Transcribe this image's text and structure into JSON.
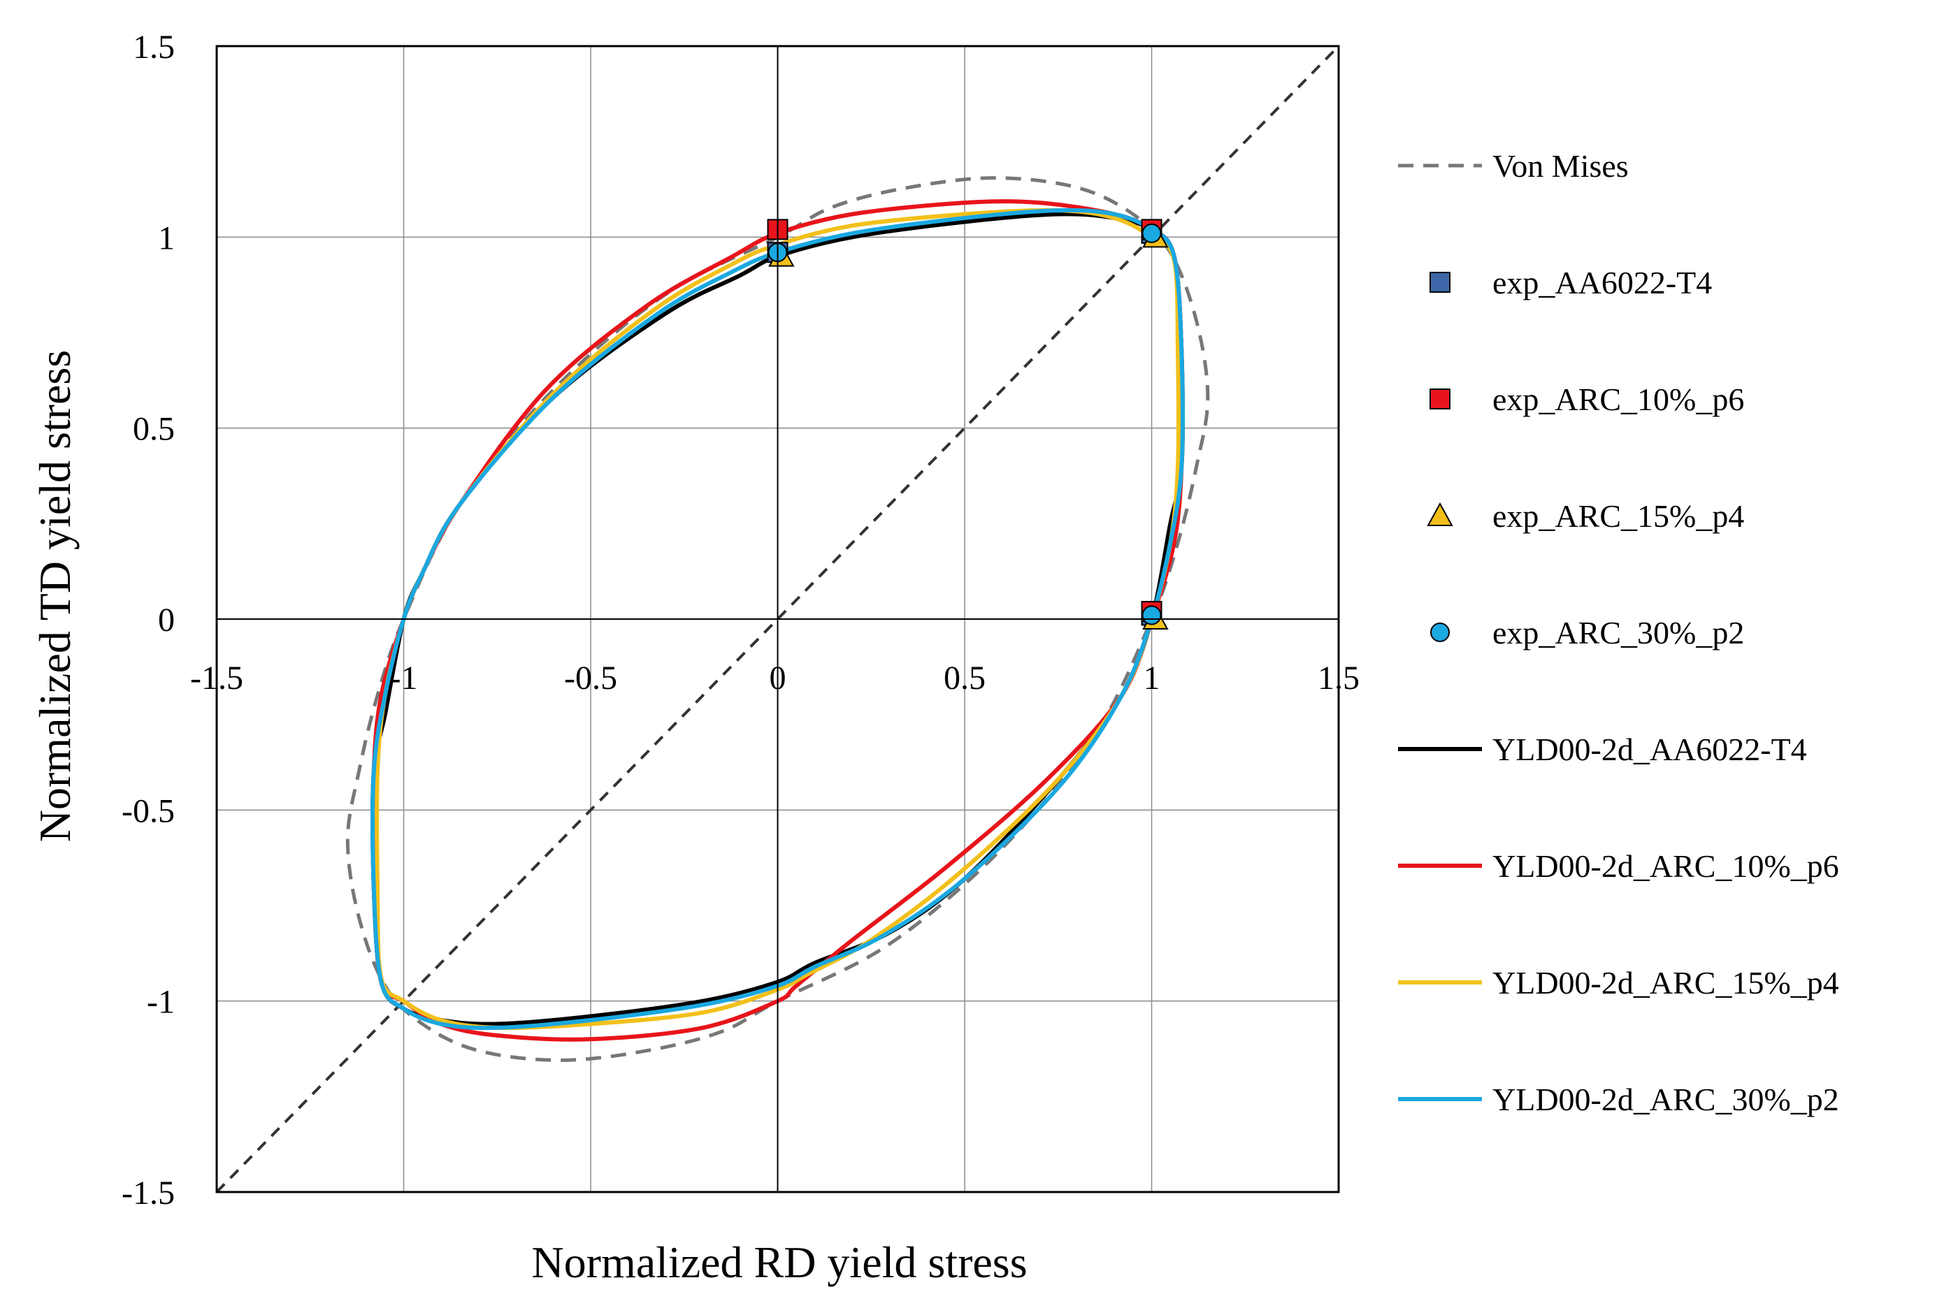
{
  "chart_data": {
    "type": "line",
    "title": "",
    "xlabel": "Normalized RD yield stress",
    "ylabel": "Normalized TD yield stress",
    "xlim": [
      -1.5,
      1.5
    ],
    "ylim": [
      -1.5,
      1.5
    ],
    "x_ticks": [
      "-1.5",
      "-1",
      "-0.5",
      "0",
      "0.5",
      "1",
      "1.5"
    ],
    "y_ticks": [
      "-1.5",
      "-1",
      "-0.5",
      "0",
      "0.5",
      "1",
      "1.5"
    ],
    "grid": true,
    "reference_line": {
      "name": "equibiaxial diagonal",
      "from": [
        -1.5,
        -1.5
      ],
      "to": [
        1.5,
        1.5
      ],
      "style": "dashed",
      "color": "#333333"
    },
    "legend_position": "right",
    "series": [
      {
        "name": "Von Mises",
        "kind": "line",
        "style": "dashed",
        "color": "#777777",
        "points": [
          [
            1,
            0
          ],
          [
            1.07,
            0.2
          ],
          [
            1.12,
            0.4
          ],
          [
            1.15,
            0.58
          ],
          [
            1.12,
            0.78
          ],
          [
            1.05,
            0.96
          ],
          [
            0.95,
            1.06
          ],
          [
            0.8,
            1.13
          ],
          [
            0.58,
            1.155
          ],
          [
            0.35,
            1.13
          ],
          [
            0.15,
            1.08
          ],
          [
            0,
            1
          ],
          [
            -0.3,
            0.85
          ],
          [
            -0.6,
            0.6
          ],
          [
            -0.85,
            0.3
          ],
          [
            -1,
            0
          ],
          [
            -1.07,
            -0.2
          ],
          [
            -1.12,
            -0.4
          ],
          [
            -1.15,
            -0.58
          ],
          [
            -1.12,
            -0.78
          ],
          [
            -1.05,
            -0.96
          ],
          [
            -0.95,
            -1.06
          ],
          [
            -0.8,
            -1.13
          ],
          [
            -0.58,
            -1.155
          ],
          [
            -0.35,
            -1.13
          ],
          [
            -0.15,
            -1.08
          ],
          [
            0,
            -1
          ],
          [
            0.3,
            -0.85
          ],
          [
            0.6,
            -0.6
          ],
          [
            0.85,
            -0.3
          ],
          [
            1,
            0
          ]
        ]
      },
      {
        "name": "exp_AA6022-T4",
        "kind": "marker",
        "marker": "square",
        "color": "#3E66A8",
        "points": [
          [
            0,
            0.96
          ],
          [
            1,
            1.01
          ],
          [
            1,
            0.01
          ]
        ]
      },
      {
        "name": "exp_ARC_10%_p6",
        "kind": "marker",
        "marker": "square",
        "color": "#E8141B",
        "points": [
          [
            0,
            1.02
          ],
          [
            1,
            1.02
          ],
          [
            1,
            0.02
          ]
        ]
      },
      {
        "name": "exp_ARC_15%_p4",
        "kind": "marker",
        "marker": "triangle",
        "color": "#F2C01A",
        "points": [
          [
            0.01,
            0.95
          ],
          [
            1.01,
            1.0
          ],
          [
            1.01,
            0.0
          ]
        ]
      },
      {
        "name": "exp_ARC_30%_p2",
        "kind": "marker",
        "marker": "circle",
        "color": "#1AA8E0",
        "points": [
          [
            0,
            0.96
          ],
          [
            1,
            1.01
          ],
          [
            1,
            0.01
          ]
        ]
      },
      {
        "name": "YLD00-2d_AA6022-T4",
        "kind": "line",
        "style": "solid",
        "color": "#000000",
        "points": [
          [
            -1,
            0
          ],
          [
            -0.95,
            0.12
          ],
          [
            -0.85,
            0.3
          ],
          [
            -0.6,
            0.58
          ],
          [
            -0.3,
            0.8
          ],
          [
            -0.1,
            0.9
          ],
          [
            0,
            0.95
          ],
          [
            0.2,
            1.0
          ],
          [
            0.5,
            1.04
          ],
          [
            0.75,
            1.06
          ],
          [
            0.9,
            1.05
          ],
          [
            1,
            1.02
          ],
          [
            1.06,
            0.95
          ],
          [
            1.08,
            0.7
          ],
          [
            1.08,
            0.4
          ],
          [
            1.05,
            0.25
          ],
          [
            1,
            0
          ],
          [
            0.92,
            -0.2
          ],
          [
            0.75,
            -0.42
          ],
          [
            0.5,
            -0.68
          ],
          [
            0.3,
            -0.82
          ],
          [
            0.1,
            -0.9
          ],
          [
            0,
            -0.95
          ],
          [
            -0.2,
            -1.0
          ],
          [
            -0.5,
            -1.04
          ],
          [
            -0.75,
            -1.06
          ],
          [
            -0.9,
            -1.05
          ],
          [
            -1,
            -1.02
          ],
          [
            -1.06,
            -0.95
          ],
          [
            -1.08,
            -0.7
          ],
          [
            -1.08,
            -0.4
          ],
          [
            -1.05,
            -0.25
          ],
          [
            -1,
            0
          ]
        ]
      },
      {
        "name": "YLD00-2d_ARC_10%_p6",
        "kind": "line",
        "style": "solid",
        "color": "#E8141B",
        "points": [
          [
            -1,
            0
          ],
          [
            -0.95,
            0.12
          ],
          [
            -0.85,
            0.3
          ],
          [
            -0.62,
            0.6
          ],
          [
            -0.35,
            0.82
          ],
          [
            -0.12,
            0.95
          ],
          [
            0,
            1.01
          ],
          [
            0.2,
            1.06
          ],
          [
            0.5,
            1.09
          ],
          [
            0.7,
            1.09
          ],
          [
            0.9,
            1.06
          ],
          [
            1,
            1.02
          ],
          [
            1.06,
            0.95
          ],
          [
            1.08,
            0.7
          ],
          [
            1.08,
            0.4
          ],
          [
            1.06,
            0.2
          ],
          [
            1,
            0
          ],
          [
            0.92,
            -0.2
          ],
          [
            0.72,
            -0.42
          ],
          [
            0.45,
            -0.65
          ],
          [
            0.2,
            -0.84
          ],
          [
            0.05,
            -0.96
          ],
          [
            0,
            -1.0
          ],
          [
            -0.2,
            -1.07
          ],
          [
            -0.5,
            -1.1
          ],
          [
            -0.75,
            -1.09
          ],
          [
            -0.9,
            -1.06
          ],
          [
            -1,
            -1.0
          ],
          [
            -1.06,
            -0.95
          ],
          [
            -1.08,
            -0.7
          ],
          [
            -1.08,
            -0.4
          ],
          [
            -1.06,
            -0.2
          ],
          [
            -1,
            0
          ]
        ]
      },
      {
        "name": "YLD00-2d_ARC_15%_p4",
        "kind": "line",
        "style": "solid",
        "color": "#F2C01A",
        "points": [
          [
            -1,
            0
          ],
          [
            -0.95,
            0.12
          ],
          [
            -0.85,
            0.3
          ],
          [
            -0.6,
            0.59
          ],
          [
            -0.33,
            0.81
          ],
          [
            -0.12,
            0.93
          ],
          [
            0,
            0.98
          ],
          [
            0.2,
            1.03
          ],
          [
            0.5,
            1.06
          ],
          [
            0.75,
            1.07
          ],
          [
            0.9,
            1.05
          ],
          [
            1,
            1.0
          ],
          [
            1.06,
            0.94
          ],
          [
            1.07,
            0.7
          ],
          [
            1.07,
            0.4
          ],
          [
            1.05,
            0.2
          ],
          [
            1,
            0
          ],
          [
            0.92,
            -0.2
          ],
          [
            0.74,
            -0.43
          ],
          [
            0.48,
            -0.67
          ],
          [
            0.25,
            -0.84
          ],
          [
            0.08,
            -0.93
          ],
          [
            0,
            -0.97
          ],
          [
            -0.2,
            -1.03
          ],
          [
            -0.5,
            -1.06
          ],
          [
            -0.75,
            -1.07
          ],
          [
            -0.9,
            -1.05
          ],
          [
            -1,
            -1.0
          ],
          [
            -1.06,
            -0.94
          ],
          [
            -1.07,
            -0.7
          ],
          [
            -1.07,
            -0.4
          ],
          [
            -1.05,
            -0.2
          ],
          [
            -1,
            0
          ]
        ]
      },
      {
        "name": "YLD00-2d_ARC_30%_p2",
        "kind": "line",
        "style": "solid",
        "color": "#1AA8E0",
        "points": [
          [
            -1,
            0
          ],
          [
            -0.95,
            0.12
          ],
          [
            -0.85,
            0.3
          ],
          [
            -0.6,
            0.58
          ],
          [
            -0.32,
            0.8
          ],
          [
            -0.12,
            0.91
          ],
          [
            0,
            0.96
          ],
          [
            0.2,
            1.01
          ],
          [
            0.5,
            1.05
          ],
          [
            0.75,
            1.07
          ],
          [
            0.9,
            1.06
          ],
          [
            1,
            1.02
          ],
          [
            1.06,
            0.95
          ],
          [
            1.08,
            0.7
          ],
          [
            1.08,
            0.4
          ],
          [
            1.05,
            0.2
          ],
          [
            1,
            0
          ],
          [
            0.92,
            -0.2
          ],
          [
            0.76,
            -0.43
          ],
          [
            0.5,
            -0.68
          ],
          [
            0.28,
            -0.83
          ],
          [
            0.1,
            -0.91
          ],
          [
            0,
            -0.96
          ],
          [
            -0.2,
            -1.01
          ],
          [
            -0.5,
            -1.05
          ],
          [
            -0.75,
            -1.07
          ],
          [
            -0.9,
            -1.06
          ],
          [
            -1,
            -1.02
          ],
          [
            -1.06,
            -0.95
          ],
          [
            -1.08,
            -0.7
          ],
          [
            -1.08,
            -0.4
          ],
          [
            -1.05,
            -0.2
          ],
          [
            -1,
            0
          ]
        ]
      }
    ]
  }
}
